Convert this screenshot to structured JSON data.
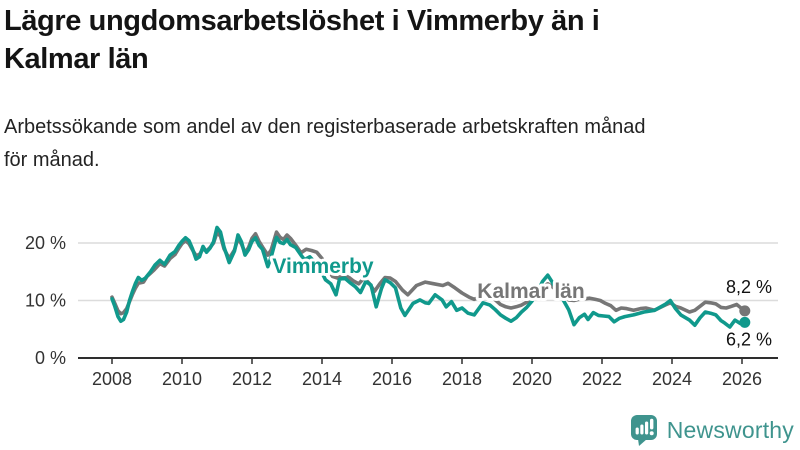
{
  "header": {
    "title_lines": [
      "Lägre ungdomsarbetslöshet i Vimmerby än i",
      "Kalmar län"
    ],
    "subtitle_lines": [
      "Arbetssökande som andel av den registerbaserade arbetskraften månad",
      "för månad."
    ]
  },
  "chart_data": {
    "type": "line",
    "x_unit": "decimal_year",
    "xlim": [
      2008,
      2026.6
    ],
    "ylim": [
      0,
      24
    ],
    "grid": "horizontal",
    "axis_color": "#2e2e2e",
    "grid_color": "#dcdcdc",
    "tick_label_color": "#333333",
    "end_label_color": "#111111",
    "y_ticks": [
      {
        "value": 0,
        "label": "0 %"
      },
      {
        "value": 10,
        "label": "10 %"
      },
      {
        "value": 20,
        "label": "20 %"
      }
    ],
    "x_ticks": [
      {
        "value": 2008,
        "label": "2008"
      },
      {
        "value": 2010,
        "label": "2010"
      },
      {
        "value": 2012,
        "label": "2012"
      },
      {
        "value": 2014,
        "label": "2014"
      },
      {
        "value": 2016,
        "label": "2016"
      },
      {
        "value": 2018,
        "label": "2018"
      },
      {
        "value": 2020,
        "label": "2020"
      },
      {
        "value": 2022,
        "label": "2022"
      },
      {
        "value": 2024,
        "label": "2024"
      },
      {
        "value": 2026,
        "label": "2026"
      }
    ],
    "series": [
      {
        "name": "Kalmar län",
        "color": "#767676",
        "latest_value": 8.2,
        "end_value_label": "8,2 %",
        "points": [
          [
            2008.0,
            10.6
          ],
          [
            2008.08,
            9.5
          ],
          [
            2008.17,
            8.2
          ],
          [
            2008.25,
            7.7
          ],
          [
            2008.33,
            7.9
          ],
          [
            2008.42,
            8.6
          ],
          [
            2008.5,
            9.8
          ],
          [
            2008.58,
            11.0
          ],
          [
            2008.67,
            12.2
          ],
          [
            2008.75,
            13.0
          ],
          [
            2008.9,
            13.2
          ],
          [
            2009.0,
            14.2
          ],
          [
            2009.2,
            15.3
          ],
          [
            2009.37,
            16.4
          ],
          [
            2009.5,
            16.0
          ],
          [
            2009.66,
            17.3
          ],
          [
            2009.8,
            18.0
          ],
          [
            2009.9,
            19.0
          ],
          [
            2010.0,
            19.9
          ],
          [
            2010.1,
            20.4
          ],
          [
            2010.2,
            19.9
          ],
          [
            2010.3,
            18.8
          ],
          [
            2010.4,
            17.8
          ],
          [
            2010.5,
            18.0
          ],
          [
            2010.6,
            19.0
          ],
          [
            2010.7,
            18.6
          ],
          [
            2010.8,
            19.2
          ],
          [
            2010.9,
            20.0
          ],
          [
            2011.0,
            21.8
          ],
          [
            2011.1,
            21.2
          ],
          [
            2011.2,
            19.0
          ],
          [
            2011.35,
            17.3
          ],
          [
            2011.5,
            18.8
          ],
          [
            2011.6,
            20.8
          ],
          [
            2011.7,
            19.8
          ],
          [
            2011.8,
            18.3
          ],
          [
            2011.9,
            19.2
          ],
          [
            2012.0,
            20.8
          ],
          [
            2012.1,
            21.6
          ],
          [
            2012.2,
            20.3
          ],
          [
            2012.3,
            19.3
          ],
          [
            2012.45,
            17.9
          ],
          [
            2012.55,
            18.8
          ],
          [
            2012.7,
            21.9
          ],
          [
            2012.8,
            21.0
          ],
          [
            2012.9,
            20.6
          ],
          [
            2013.0,
            21.4
          ],
          [
            2013.1,
            20.8
          ],
          [
            2013.25,
            19.6
          ],
          [
            2013.4,
            18.3
          ],
          [
            2013.55,
            18.9
          ],
          [
            2013.7,
            18.7
          ],
          [
            2013.85,
            18.4
          ],
          [
            2014.0,
            17.3
          ],
          [
            2014.15,
            15.6
          ],
          [
            2014.3,
            14.2
          ],
          [
            2014.45,
            13.9
          ],
          [
            2014.6,
            14.4
          ],
          [
            2014.75,
            14.1
          ],
          [
            2014.9,
            13.4
          ],
          [
            2015.05,
            12.9
          ],
          [
            2015.2,
            13.9
          ],
          [
            2015.35,
            13.0
          ],
          [
            2015.5,
            11.6
          ],
          [
            2015.65,
            12.9
          ],
          [
            2015.8,
            14.0
          ],
          [
            2015.95,
            13.9
          ],
          [
            2016.1,
            13.3
          ],
          [
            2016.3,
            11.8
          ],
          [
            2016.45,
            11.0
          ],
          [
            2016.7,
            12.6
          ],
          [
            2016.95,
            13.2
          ],
          [
            2017.2,
            12.9
          ],
          [
            2017.45,
            12.6
          ],
          [
            2017.6,
            13.0
          ],
          [
            2017.8,
            12.2
          ],
          [
            2018.0,
            11.3
          ],
          [
            2018.2,
            10.6
          ],
          [
            2018.35,
            10.2
          ],
          [
            2018.5,
            10.6
          ],
          [
            2018.65,
            10.9
          ],
          [
            2018.8,
            10.7
          ],
          [
            2018.95,
            10.1
          ],
          [
            2019.1,
            9.3
          ],
          [
            2019.25,
            8.9
          ],
          [
            2019.4,
            8.7
          ],
          [
            2019.55,
            8.9
          ],
          [
            2019.7,
            9.2
          ],
          [
            2019.85,
            9.7
          ],
          [
            2020.0,
            10.3
          ],
          [
            2020.15,
            11.3
          ],
          [
            2020.3,
            12.3
          ],
          [
            2020.45,
            12.9
          ],
          [
            2020.6,
            12.3
          ],
          [
            2020.75,
            11.5
          ],
          [
            2020.9,
            10.8
          ],
          [
            2021.05,
            10.1
          ],
          [
            2021.2,
            10.0
          ],
          [
            2021.35,
            10.2
          ],
          [
            2021.5,
            10.3
          ],
          [
            2021.65,
            10.4
          ],
          [
            2021.8,
            10.2
          ],
          [
            2021.95,
            10.0
          ],
          [
            2022.1,
            9.5
          ],
          [
            2022.25,
            9.1
          ],
          [
            2022.4,
            8.3
          ],
          [
            2022.55,
            8.7
          ],
          [
            2022.7,
            8.6
          ],
          [
            2022.9,
            8.3
          ],
          [
            2023.1,
            8.6
          ],
          [
            2023.25,
            8.7
          ],
          [
            2023.5,
            8.3
          ],
          [
            2023.8,
            9.2
          ],
          [
            2023.95,
            9.6
          ],
          [
            2024.1,
            9.0
          ],
          [
            2024.25,
            8.7
          ],
          [
            2024.5,
            8.0
          ],
          [
            2024.65,
            8.3
          ],
          [
            2024.8,
            9.0
          ],
          [
            2024.95,
            9.7
          ],
          [
            2025.1,
            9.6
          ],
          [
            2025.25,
            9.4
          ],
          [
            2025.4,
            8.8
          ],
          [
            2025.55,
            8.7
          ],
          [
            2025.7,
            9.0
          ],
          [
            2025.85,
            9.3
          ],
          [
            2025.95,
            8.8
          ],
          [
            2026.08,
            8.2
          ]
        ]
      },
      {
        "name": "Vimmerby",
        "color": "#10998c",
        "latest_value": 6.2,
        "end_value_label": "6,2 %",
        "points": [
          [
            2008.0,
            10.3
          ],
          [
            2008.08,
            9.0
          ],
          [
            2008.17,
            7.2
          ],
          [
            2008.25,
            6.4
          ],
          [
            2008.33,
            6.7
          ],
          [
            2008.42,
            8.0
          ],
          [
            2008.5,
            10.0
          ],
          [
            2008.58,
            11.5
          ],
          [
            2008.67,
            13.0
          ],
          [
            2008.75,
            14.0
          ],
          [
            2008.85,
            13.5
          ],
          [
            2008.95,
            13.9
          ],
          [
            2009.1,
            15.0
          ],
          [
            2009.23,
            16.2
          ],
          [
            2009.37,
            17.0
          ],
          [
            2009.5,
            16.3
          ],
          [
            2009.66,
            17.9
          ],
          [
            2009.8,
            18.5
          ],
          [
            2009.9,
            19.5
          ],
          [
            2010.0,
            20.3
          ],
          [
            2010.1,
            20.9
          ],
          [
            2010.2,
            20.4
          ],
          [
            2010.3,
            19.0
          ],
          [
            2010.4,
            17.2
          ],
          [
            2010.5,
            17.6
          ],
          [
            2010.6,
            19.4
          ],
          [
            2010.7,
            18.4
          ],
          [
            2010.8,
            19.1
          ],
          [
            2010.9,
            20.2
          ],
          [
            2011.0,
            22.7
          ],
          [
            2011.1,
            21.9
          ],
          [
            2011.2,
            19.3
          ],
          [
            2011.35,
            16.6
          ],
          [
            2011.5,
            18.6
          ],
          [
            2011.6,
            21.4
          ],
          [
            2011.7,
            20.2
          ],
          [
            2011.8,
            17.9
          ],
          [
            2011.9,
            18.8
          ],
          [
            2012.0,
            20.3
          ],
          [
            2012.1,
            20.9
          ],
          [
            2012.2,
            19.6
          ],
          [
            2012.3,
            18.9
          ],
          [
            2012.45,
            15.9
          ],
          [
            2012.55,
            17.6
          ],
          [
            2012.7,
            21.0
          ],
          [
            2012.8,
            20.1
          ],
          [
            2012.9,
            19.9
          ],
          [
            2013.0,
            20.6
          ],
          [
            2013.1,
            19.7
          ],
          [
            2013.25,
            19.2
          ],
          [
            2013.4,
            17.9
          ],
          [
            2013.5,
            17.1
          ],
          [
            2013.65,
            17.6
          ],
          [
            2013.8,
            16.6
          ],
          [
            2013.95,
            15.4
          ],
          [
            2014.1,
            13.6
          ],
          [
            2014.25,
            12.9
          ],
          [
            2014.4,
            11.0
          ],
          [
            2014.5,
            13.7
          ],
          [
            2014.65,
            13.9
          ],
          [
            2014.8,
            13.1
          ],
          [
            2014.95,
            12.4
          ],
          [
            2015.1,
            11.4
          ],
          [
            2015.25,
            13.3
          ],
          [
            2015.4,
            12.7
          ],
          [
            2015.55,
            8.9
          ],
          [
            2015.7,
            12.1
          ],
          [
            2015.8,
            13.6
          ],
          [
            2015.95,
            13.1
          ],
          [
            2016.1,
            12.2
          ],
          [
            2016.25,
            8.7
          ],
          [
            2016.37,
            7.4
          ],
          [
            2016.6,
            9.5
          ],
          [
            2016.8,
            10.1
          ],
          [
            2016.95,
            9.6
          ],
          [
            2017.05,
            9.5
          ],
          [
            2017.23,
            11.0
          ],
          [
            2017.43,
            10.1
          ],
          [
            2017.55,
            8.9
          ],
          [
            2017.7,
            9.8
          ],
          [
            2017.85,
            8.3
          ],
          [
            2018.0,
            8.7
          ],
          [
            2018.17,
            7.8
          ],
          [
            2018.35,
            7.5
          ],
          [
            2018.6,
            9.6
          ],
          [
            2018.8,
            9.2
          ],
          [
            2018.95,
            8.4
          ],
          [
            2019.1,
            7.5
          ],
          [
            2019.25,
            6.9
          ],
          [
            2019.4,
            6.4
          ],
          [
            2019.55,
            7.0
          ],
          [
            2019.7,
            8.0
          ],
          [
            2019.85,
            8.8
          ],
          [
            2020.0,
            9.9
          ],
          [
            2020.15,
            11.4
          ],
          [
            2020.3,
            13.3
          ],
          [
            2020.45,
            14.4
          ],
          [
            2020.6,
            13.0
          ],
          [
            2020.75,
            11.4
          ],
          [
            2020.9,
            10.0
          ],
          [
            2021.05,
            8.4
          ],
          [
            2021.2,
            5.8
          ],
          [
            2021.35,
            7.0
          ],
          [
            2021.5,
            7.6
          ],
          [
            2021.6,
            6.7
          ],
          [
            2021.75,
            7.9
          ],
          [
            2021.9,
            7.4
          ],
          [
            2022.05,
            7.3
          ],
          [
            2022.2,
            7.2
          ],
          [
            2022.35,
            6.3
          ],
          [
            2022.5,
            6.9
          ],
          [
            2022.65,
            7.2
          ],
          [
            2022.9,
            7.5
          ],
          [
            2023.2,
            8.0
          ],
          [
            2023.5,
            8.3
          ],
          [
            2023.8,
            9.3
          ],
          [
            2023.95,
            10.0
          ],
          [
            2024.1,
            8.6
          ],
          [
            2024.25,
            7.5
          ],
          [
            2024.5,
            6.6
          ],
          [
            2024.65,
            5.7
          ],
          [
            2024.8,
            7.0
          ],
          [
            2024.95,
            8.0
          ],
          [
            2025.1,
            7.8
          ],
          [
            2025.25,
            7.5
          ],
          [
            2025.4,
            6.5
          ],
          [
            2025.5,
            6.1
          ],
          [
            2025.65,
            5.4
          ],
          [
            2025.8,
            6.6
          ],
          [
            2025.95,
            6.0
          ],
          [
            2026.08,
            6.2
          ]
        ]
      }
    ]
  },
  "footer": {
    "brand": "Newsworthy",
    "brand_color": "#3f948e"
  }
}
